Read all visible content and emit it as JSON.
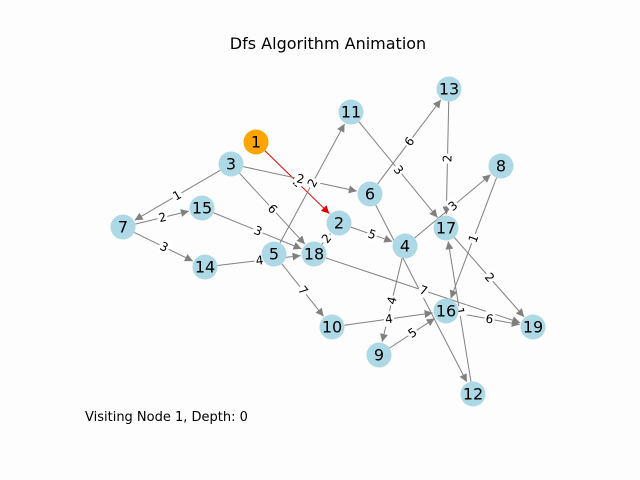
{
  "title": "Dfs Algorithm Animation",
  "status_text": "Visiting Node 1, Depth: 0",
  "colors": {
    "node": "#add8e6",
    "node_current": "#ffa500",
    "edge": "#808080",
    "edge_active": "#e00000",
    "label_bg": "#ffffff"
  },
  "graph": {
    "directed": true,
    "current_node": "1",
    "nodes": [
      "1",
      "2",
      "3",
      "4",
      "5",
      "6",
      "7",
      "8",
      "9",
      "10",
      "11",
      "12",
      "13",
      "14",
      "15",
      "16",
      "17",
      "18",
      "19"
    ],
    "edges": [
      {
        "source": "1",
        "target": "2",
        "weight": "2",
        "active": true
      },
      {
        "source": "3",
        "target": "7",
        "weight": "1"
      },
      {
        "source": "3",
        "target": "6",
        "weight": "2"
      },
      {
        "source": "3",
        "target": "18",
        "weight": "6"
      },
      {
        "source": "5",
        "target": "11",
        "weight": "2"
      },
      {
        "source": "5",
        "target": "10",
        "weight": "7"
      },
      {
        "source": "7",
        "target": "15",
        "weight": "2"
      },
      {
        "source": "7",
        "target": "14",
        "weight": "3"
      },
      {
        "source": "15",
        "target": "18",
        "weight": "3"
      },
      {
        "source": "14",
        "target": "18",
        "weight": "4"
      },
      {
        "source": "18",
        "target": "2",
        "weight": "2"
      },
      {
        "source": "18",
        "target": "19",
        "weight": "7"
      },
      {
        "source": "2",
        "target": "4",
        "weight": "5"
      },
      {
        "source": "6",
        "target": "13",
        "weight": "6"
      },
      {
        "source": "6",
        "target": "12",
        "weight": ""
      },
      {
        "source": "11",
        "target": "17",
        "weight": "3"
      },
      {
        "source": "13",
        "target": "17",
        "weight": "2"
      },
      {
        "source": "4",
        "target": "8",
        "weight": "3"
      },
      {
        "source": "4",
        "target": "9",
        "weight": "4"
      },
      {
        "source": "8",
        "target": "16",
        "weight": "1"
      },
      {
        "source": "17",
        "target": "19",
        "weight": "2"
      },
      {
        "source": "10",
        "target": "16",
        "weight": "4"
      },
      {
        "source": "9",
        "target": "16",
        "weight": "5"
      },
      {
        "source": "16",
        "target": "19",
        "weight": "6"
      },
      {
        "source": "12",
        "target": "17",
        "weight": "1"
      }
    ]
  }
}
